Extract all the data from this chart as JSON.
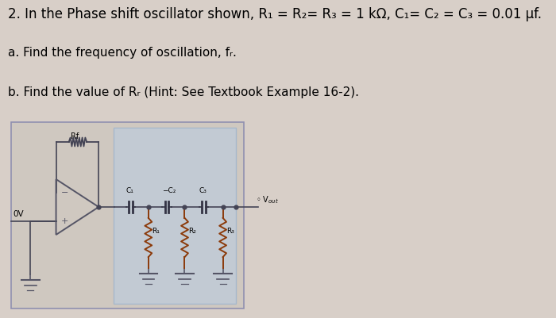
{
  "background_color": "#d8cfc8",
  "text_line1": "2. In the Phase shift oscillator shown, R₁ = R₂= R₃ = 1 kΩ, C₁= C₂ = C₃ = 0.01 μf.",
  "text_line2": "a. Find the frequency of oscillation, fᵣ.",
  "text_line3": "b. Find the value of Rᵣ (Hint: See Textbook Example 16-2).",
  "circuit_box_color": "#b8cce4",
  "outer_box_edge": "#9090b0",
  "wire_color": "#444455",
  "font_size_main": 12,
  "font_size_sub": 11,
  "cap_labels": [
    "C₁",
    "−C₂",
    "C₃"
  ],
  "res_labels": [
    "R₁",
    "R₂",
    "R₃"
  ],
  "vout_label": "◦ Vₒᵤₜ"
}
